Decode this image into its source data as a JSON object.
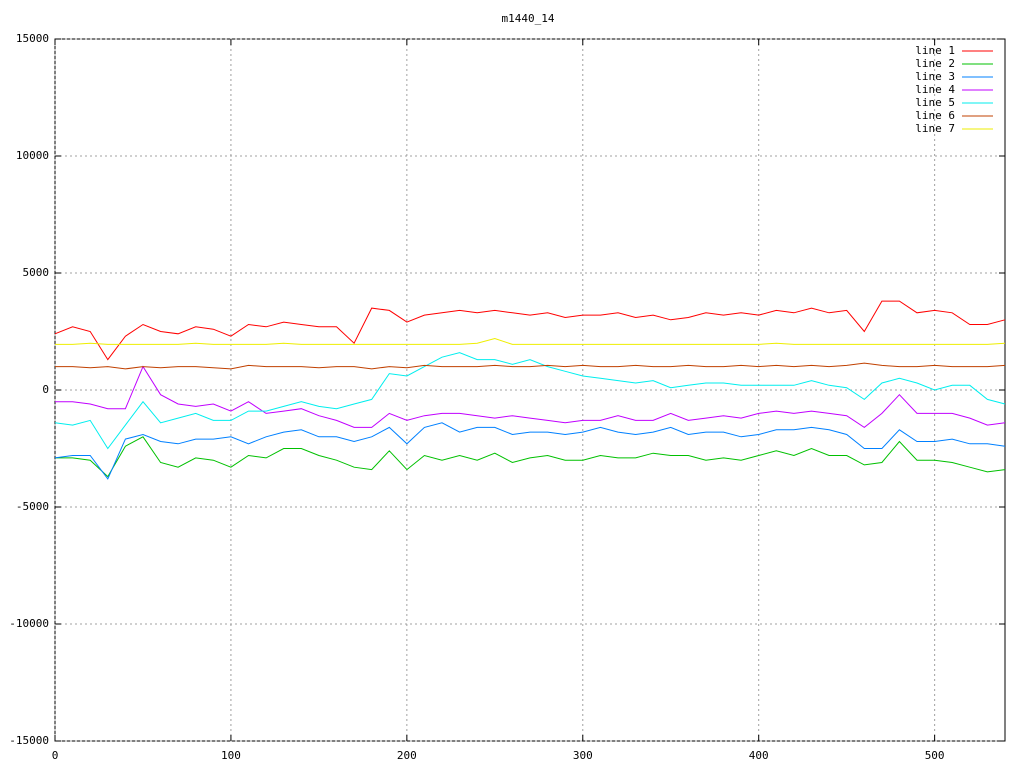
{
  "chart_data": {
    "type": "line",
    "title": "m1440_14",
    "x": [
      0,
      10,
      20,
      30,
      40,
      50,
      60,
      70,
      80,
      90,
      100,
      110,
      120,
      130,
      140,
      150,
      160,
      170,
      180,
      190,
      200,
      210,
      220,
      230,
      240,
      250,
      260,
      270,
      280,
      290,
      300,
      310,
      320,
      330,
      340,
      350,
      360,
      370,
      380,
      390,
      400,
      410,
      420,
      430,
      440,
      450,
      460,
      470,
      480,
      490,
      500,
      510,
      520,
      530,
      540
    ],
    "xlim": [
      0,
      540
    ],
    "xticks": [
      0,
      100,
      200,
      300,
      400,
      500
    ],
    "ylim": [
      -15000,
      15000
    ],
    "yticks": [
      -15000,
      -10000,
      -5000,
      0,
      5000,
      10000,
      15000
    ],
    "grid": true,
    "legend": "top-right",
    "series": [
      {
        "name": "line 1",
        "color": "#ff0000",
        "values": [
          2400,
          2700,
          2500,
          1300,
          2300,
          2800,
          2500,
          2400,
          2700,
          2600,
          2300,
          2800,
          2700,
          2900,
          2800,
          2700,
          2700,
          2000,
          3500,
          3400,
          2900,
          3200,
          3300,
          3400,
          3300,
          3400,
          3300,
          3200,
          3300,
          3100,
          3200,
          3200,
          3300,
          3100,
          3200,
          3000,
          3100,
          3300,
          3200,
          3300,
          3200,
          3400,
          3300,
          3500,
          3300,
          3400,
          2500,
          3800,
          3800,
          3300,
          3400,
          3300,
          2800,
          2800,
          3000
        ]
      },
      {
        "name": "line 2",
        "color": "#00c000",
        "values": [
          -2900,
          -2900,
          -3000,
          -3700,
          -2400,
          -2000,
          -3100,
          -3300,
          -2900,
          -3000,
          -3300,
          -2800,
          -2900,
          -2500,
          -2500,
          -2800,
          -3000,
          -3300,
          -3400,
          -2600,
          -3400,
          -2800,
          -3000,
          -2800,
          -3000,
          -2700,
          -3100,
          -2900,
          -2800,
          -3000,
          -3000,
          -2800,
          -2900,
          -2900,
          -2700,
          -2800,
          -2800,
          -3000,
          -2900,
          -3000,
          -2800,
          -2600,
          -2800,
          -2500,
          -2800,
          -2800,
          -3200,
          -3100,
          -2200,
          -3000,
          -3000,
          -3100,
          -3300,
          -3500,
          -3400
        ]
      },
      {
        "name": "line 3",
        "color": "#0080ff",
        "values": [
          -2900,
          -2800,
          -2800,
          -3800,
          -2100,
          -1900,
          -2200,
          -2300,
          -2100,
          -2100,
          -2000,
          -2300,
          -2000,
          -1800,
          -1700,
          -2000,
          -2000,
          -2200,
          -2000,
          -1600,
          -2300,
          -1600,
          -1400,
          -1800,
          -1600,
          -1600,
          -1900,
          -1800,
          -1800,
          -1900,
          -1800,
          -1600,
          -1800,
          -1900,
          -1800,
          -1600,
          -1900,
          -1800,
          -1800,
          -2000,
          -1900,
          -1700,
          -1700,
          -1600,
          -1700,
          -1900,
          -2500,
          -2500,
          -1700,
          -2200,
          -2200,
          -2100,
          -2300,
          -2300,
          -2400
        ]
      },
      {
        "name": "line 4",
        "color": "#c000ff",
        "values": [
          -500,
          -500,
          -600,
          -800,
          -800,
          1000,
          -200,
          -600,
          -700,
          -600,
          -900,
          -500,
          -1000,
          -900,
          -800,
          -1100,
          -1300,
          -1600,
          -1600,
          -1000,
          -1300,
          -1100,
          -1000,
          -1000,
          -1100,
          -1200,
          -1100,
          -1200,
          -1300,
          -1400,
          -1300,
          -1300,
          -1100,
          -1300,
          -1300,
          -1000,
          -1300,
          -1200,
          -1100,
          -1200,
          -1000,
          -900,
          -1000,
          -900,
          -1000,
          -1100,
          -1600,
          -1000,
          -200,
          -1000,
          -1000,
          -1000,
          -1200,
          -1500,
          -1400
        ]
      },
      {
        "name": "line 5",
        "color": "#00eeee",
        "values": [
          -1400,
          -1500,
          -1300,
          -2500,
          -1500,
          -500,
          -1400,
          -1200,
          -1000,
          -1300,
          -1300,
          -900,
          -900,
          -700,
          -500,
          -700,
          -800,
          -600,
          -400,
          700,
          600,
          1000,
          1400,
          1600,
          1300,
          1300,
          1100,
          1300,
          1000,
          800,
          600,
          500,
          400,
          300,
          400,
          100,
          200,
          300,
          300,
          200,
          200,
          200,
          200,
          400,
          200,
          100,
          -400,
          300,
          500,
          300,
          0,
          200,
          200,
          -400,
          -600
        ]
      },
      {
        "name": "line 6",
        "color": "#c04000",
        "values": [
          1000,
          1000,
          950,
          1000,
          900,
          1000,
          950,
          1000,
          1000,
          950,
          900,
          1050,
          1000,
          1000,
          1000,
          950,
          1000,
          1000,
          900,
          1000,
          950,
          1050,
          1000,
          1000,
          1000,
          1050,
          1000,
          1000,
          1050,
          1000,
          1050,
          1000,
          1000,
          1050,
          1000,
          1000,
          1050,
          1000,
          1000,
          1050,
          1000,
          1050,
          1000,
          1050,
          1000,
          1050,
          1150,
          1050,
          1000,
          1000,
          1050,
          1000,
          1000,
          1000,
          1050
        ]
      },
      {
        "name": "line 7",
        "color": "#eeee00",
        "values": [
          1950,
          1950,
          2000,
          1950,
          1950,
          1950,
          1950,
          1950,
          2000,
          1950,
          1950,
          1950,
          1950,
          2000,
          1950,
          1950,
          1950,
          1950,
          1950,
          1950,
          1950,
          1950,
          1950,
          1950,
          2000,
          2200,
          1950,
          1950,
          1950,
          1950,
          1950,
          1950,
          1950,
          1950,
          1950,
          1950,
          1950,
          1950,
          1950,
          1950,
          1950,
          2000,
          1950,
          1950,
          1950,
          1950,
          1950,
          1950,
          1950,
          1950,
          1950,
          1950,
          1950,
          1950,
          2000
        ]
      }
    ]
  }
}
